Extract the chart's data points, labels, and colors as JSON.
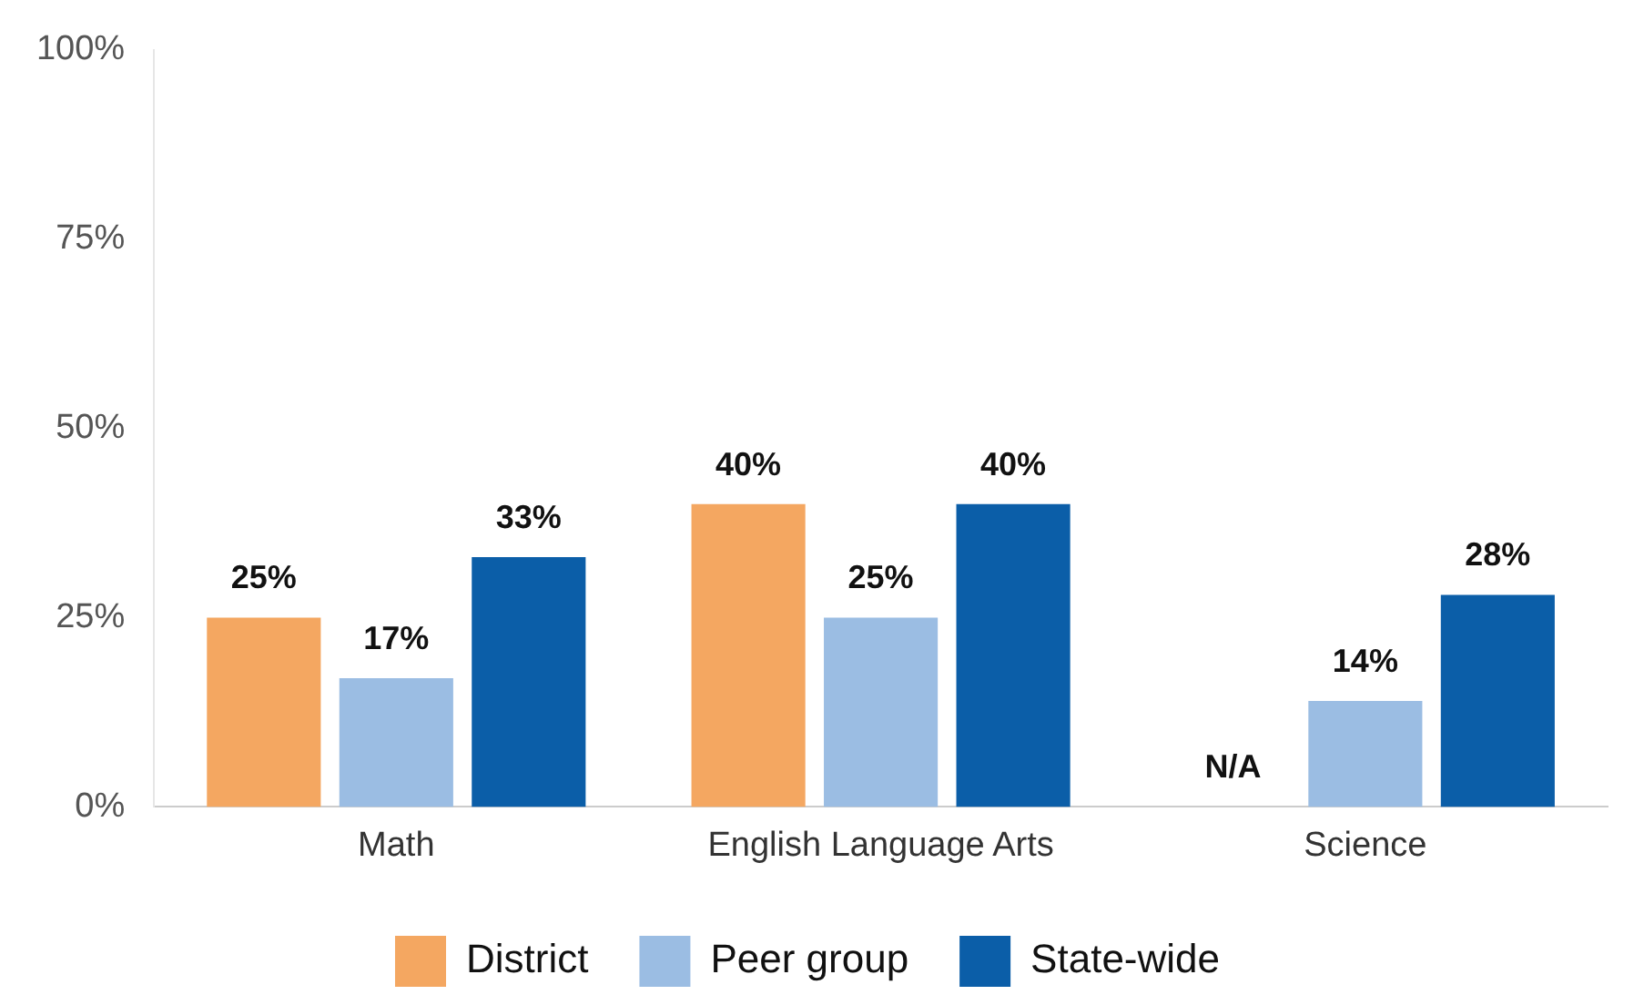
{
  "chart_data": {
    "type": "bar",
    "categories": [
      "Math",
      "English Language Arts",
      "Science"
    ],
    "series": [
      {
        "name": "District",
        "color": "#f4a761",
        "values": [
          25,
          40,
          null
        ],
        "value_labels": [
          "25%",
          "40%",
          "N/A"
        ]
      },
      {
        "name": "Peer group",
        "color": "#9bbde3",
        "values": [
          17,
          25,
          14
        ],
        "value_labels": [
          "17%",
          "25%",
          "14%"
        ]
      },
      {
        "name": "State-wide",
        "color": "#0b5ea8",
        "values": [
          33,
          40,
          28
        ],
        "value_labels": [
          "33%",
          "40%",
          "28%"
        ]
      }
    ],
    "ylim": [
      0,
      100
    ],
    "yticks": [
      {
        "value": 0,
        "label": "0%"
      },
      {
        "value": 25,
        "label": "25%"
      },
      {
        "value": 50,
        "label": "50%"
      },
      {
        "value": 75,
        "label": "75%"
      },
      {
        "value": 100,
        "label": "100%"
      }
    ],
    "legend": "bottom"
  }
}
